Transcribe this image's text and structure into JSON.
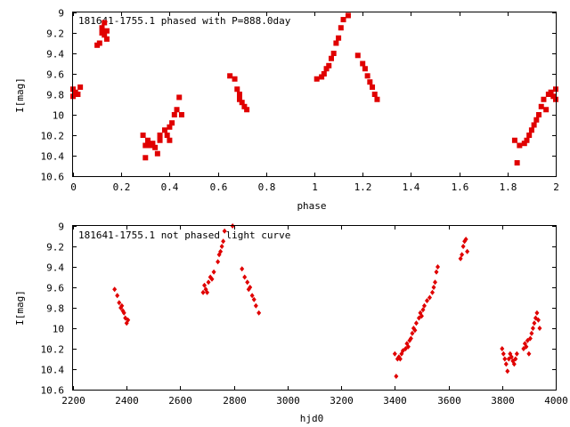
{
  "chart_data": [
    {
      "type": "scatter",
      "title": "181641-1755.1 phased with P=888.0day",
      "xlabel": "phase",
      "ylabel": "I[mag]",
      "xlim": [
        0,
        2
      ],
      "ylim": [
        9,
        10.6
      ],
      "y_inverted": true,
      "grid": false,
      "xticks": [
        "0",
        "0.2",
        "0.4",
        "0.6",
        "0.8",
        "1",
        "1.2",
        "1.4",
        "1.6",
        "1.8",
        "2"
      ],
      "yticks": [
        "9",
        "9.2",
        "9.4",
        "9.6",
        "9.8",
        "10",
        "10.2",
        "10.4",
        "10.6"
      ],
      "marker": "filled-square",
      "color": "#e00000",
      "x": [
        0.0,
        0.0,
        0.01,
        0.02,
        0.03,
        0.1,
        0.11,
        0.12,
        0.12,
        0.13,
        0.13,
        0.14,
        0.14,
        0.29,
        0.3,
        0.3,
        0.31,
        0.32,
        0.33,
        0.34,
        0.35,
        0.36,
        0.36,
        0.38,
        0.39,
        0.4,
        0.4,
        0.41,
        0.42,
        0.43,
        0.44,
        0.45,
        0.65,
        0.67,
        0.68,
        0.69,
        0.69,
        0.7,
        0.71,
        0.72,
        1.01,
        1.03,
        1.04,
        1.05,
        1.06,
        1.07,
        1.08,
        1.09,
        1.1,
        1.11,
        1.12,
        1.14,
        1.18,
        1.2,
        1.21,
        1.22,
        1.23,
        1.24,
        1.25,
        1.26,
        1.83,
        1.84,
        1.85,
        1.87,
        1.88,
        1.89,
        1.9,
        1.91,
        1.92,
        1.93,
        1.94,
        1.95,
        1.96,
        1.97,
        1.98,
        1.99,
        2.0,
        2.0
      ],
      "y": [
        9.75,
        9.82,
        9.78,
        9.8,
        9.73,
        9.32,
        9.3,
        9.15,
        9.2,
        9.1,
        9.22,
        9.18,
        9.26,
        10.2,
        10.3,
        10.42,
        10.25,
        10.3,
        10.28,
        10.32,
        10.38,
        10.25,
        10.2,
        10.15,
        10.2,
        10.25,
        10.12,
        10.08,
        10.0,
        9.95,
        9.83,
        10.0,
        9.62,
        9.65,
        9.75,
        9.8,
        9.85,
        9.88,
        9.92,
        9.95,
        9.65,
        9.63,
        9.6,
        9.55,
        9.52,
        9.45,
        9.4,
        9.3,
        9.25,
        9.15,
        9.07,
        9.03,
        9.42,
        9.5,
        9.55,
        9.62,
        9.68,
        9.73,
        9.8,
        9.85,
        10.25,
        10.47,
        10.3,
        10.28,
        10.25,
        10.2,
        10.15,
        10.1,
        10.05,
        10.0,
        9.92,
        9.85,
        9.95,
        9.8,
        9.78,
        9.82,
        9.75,
        9.85
      ]
    },
    {
      "type": "scatter",
      "title": "181641-1755.1 not phased light curve",
      "xlabel": "hjd0",
      "ylabel": "I[mag]",
      "xlim": [
        2200,
        4000
      ],
      "ylim": [
        9,
        10.6
      ],
      "y_inverted": true,
      "grid": false,
      "xticks": [
        "2200",
        "2400",
        "2600",
        "2800",
        "3000",
        "3200",
        "3400",
        "3600",
        "3800",
        "4000"
      ],
      "yticks": [
        "9",
        "9.2",
        "9.4",
        "9.6",
        "9.8",
        "10",
        "10.2",
        "10.4",
        "10.6"
      ],
      "marker": "filled-diamond",
      "color": "#e00000",
      "x": [
        2355,
        2365,
        2372,
        2378,
        2382,
        2386,
        2390,
        2395,
        2400,
        2405,
        2685,
        2690,
        2695,
        2700,
        2705,
        2712,
        2718,
        2725,
        2740,
        2745,
        2750,
        2755,
        2760,
        2765,
        2795,
        2830,
        2840,
        2850,
        2855,
        2860,
        2868,
        2875,
        2882,
        2893,
        3400,
        3405,
        3410,
        3415,
        3420,
        3425,
        3430,
        3440,
        3445,
        3450,
        3455,
        3460,
        3465,
        3470,
        3475,
        3480,
        3490,
        3495,
        3500,
        3505,
        3510,
        3520,
        3530,
        3540,
        3545,
        3550,
        3555,
        3560,
        3645,
        3650,
        3655,
        3660,
        3665,
        3670,
        3800,
        3805,
        3810,
        3815,
        3820,
        3825,
        3830,
        3835,
        3840,
        3845,
        3850,
        3855,
        3880,
        3885,
        3890,
        3895,
        3900,
        3905,
        3910,
        3915,
        3920,
        3925,
        3930,
        3935,
        3940
      ],
      "y": [
        9.62,
        9.68,
        9.75,
        9.8,
        9.78,
        9.83,
        9.85,
        9.9,
        9.95,
        9.92,
        9.65,
        9.58,
        9.62,
        9.65,
        9.55,
        9.5,
        9.52,
        9.45,
        9.35,
        9.28,
        9.25,
        9.2,
        9.15,
        9.05,
        9.0,
        9.42,
        9.5,
        9.55,
        9.62,
        9.6,
        9.68,
        9.72,
        9.78,
        9.85,
        10.25,
        10.47,
        10.3,
        10.28,
        10.3,
        10.25,
        10.22,
        10.2,
        10.15,
        10.18,
        10.12,
        10.1,
        10.05,
        10.0,
        10.02,
        9.95,
        9.9,
        9.85,
        9.88,
        9.82,
        9.78,
        9.73,
        9.7,
        9.65,
        9.6,
        9.55,
        9.45,
        9.4,
        9.32,
        9.28,
        9.2,
        9.15,
        9.13,
        9.25,
        10.2,
        10.25,
        10.3,
        10.35,
        10.42,
        10.3,
        10.25,
        10.28,
        10.32,
        10.35,
        10.3,
        10.25,
        10.2,
        10.15,
        10.18,
        10.12,
        10.25,
        10.1,
        10.05,
        10.0,
        9.95,
        9.9,
        9.85,
        9.92,
        10.0
      ]
    }
  ]
}
